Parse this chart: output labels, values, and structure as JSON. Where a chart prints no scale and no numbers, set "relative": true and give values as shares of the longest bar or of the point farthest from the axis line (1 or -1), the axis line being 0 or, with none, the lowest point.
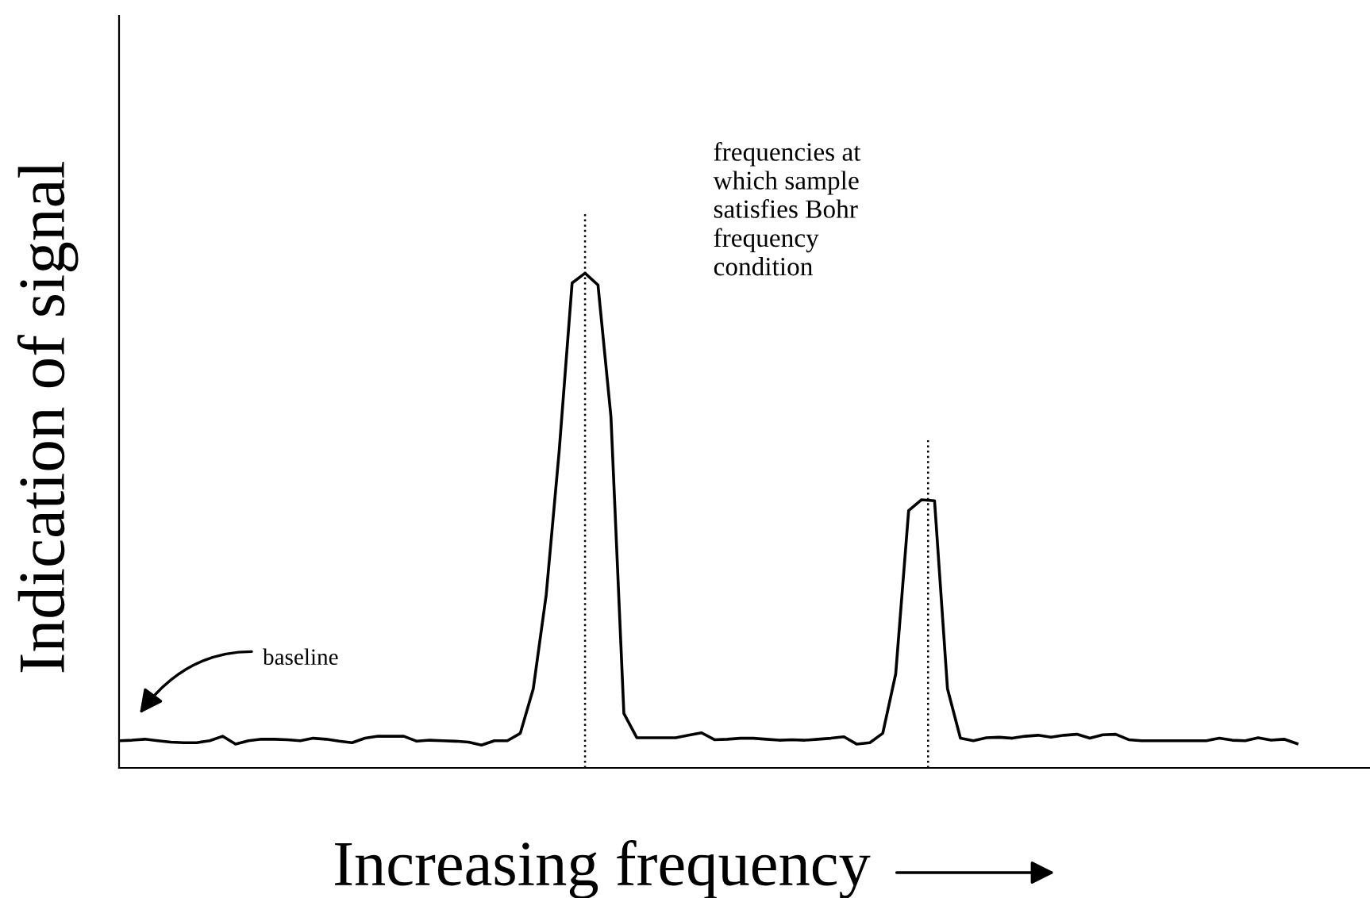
{
  "chart_data": {
    "type": "line",
    "relative": true,
    "xlabel": "Increasing frequency",
    "ylabel": "Indication of signal",
    "tick_labels": false,
    "marker": "none",
    "line_style": "solid",
    "annotations": [
      "frequencies at\nwhich sample\nsatisfies Bohr\nfrequency\ncondition",
      "baseline"
    ],
    "categories": [
      null,
      null,
      null,
      null,
      null,
      null,
      null,
      null,
      null,
      null,
      null,
      null,
      null,
      null,
      null,
      null,
      null,
      null,
      null,
      null,
      null,
      null,
      null,
      null,
      null,
      null,
      null,
      null,
      null,
      null,
      null,
      null,
      null,
      null,
      null,
      null,
      null,
      null,
      null,
      null,
      null,
      null,
      null,
      null,
      null,
      null,
      null,
      null,
      null,
      null,
      null,
      null,
      null,
      null,
      null,
      null,
      null,
      null,
      null,
      null,
      null,
      null,
      null,
      null,
      null,
      null,
      null,
      null,
      null,
      null,
      null,
      null,
      null,
      null,
      null,
      null,
      null,
      null,
      null,
      null,
      null,
      null,
      null,
      null,
      null,
      null,
      null,
      null,
      null,
      null,
      null,
      null
    ],
    "series": [
      {
        "color": "#000000",
        "values": [
          0.055,
          0.056,
          0.058,
          0.055,
          0.052,
          0.051,
          0.051,
          0.055,
          0.064,
          0.048,
          0.055,
          0.058,
          0.058,
          0.057,
          0.055,
          0.06,
          0.058,
          0.054,
          0.051,
          0.06,
          0.064,
          0.064,
          0.064,
          0.054,
          0.056,
          0.055,
          0.054,
          0.052,
          0.046,
          0.055,
          0.055,
          0.07,
          0.16,
          0.35,
          0.64,
          0.98,
          1,
          0.976,
          0.71,
          0.11,
          0.061,
          0.061,
          0.061,
          0.061,
          0.066,
          0.071,
          0.057,
          0.058,
          0.06,
          0.06,
          0.058,
          0.056,
          0.057,
          0.056,
          0.058,
          0.06,
          0.063,
          0.048,
          0.051,
          0.07,
          0.19,
          0.52,
          0.542,
          0.54,
          0.16,
          0.06,
          0.055,
          0.061,
          0.062,
          0.06,
          0.064,
          0.066,
          0.062,
          0.066,
          0.068,
          0.06,
          0.067,
          0.068,
          0.057,
          0.055,
          0.055,
          0.055,
          0.055,
          0.055,
          0.055,
          0.06,
          0.056,
          0.055,
          0.061,
          0.056,
          0.058,
          0.049
        ]
      }
    ]
  }
}
